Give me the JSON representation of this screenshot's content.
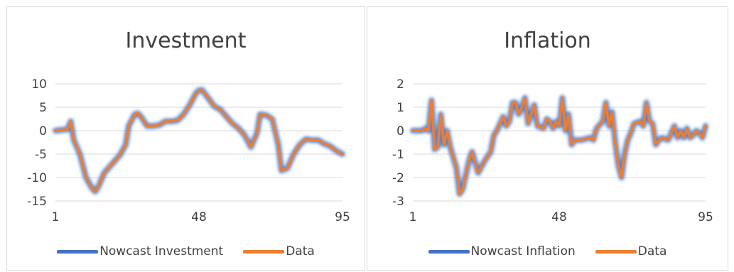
{
  "colors": {
    "nowcast": "#4472c4",
    "data": "#ed7d31",
    "grid": "#d9d9d9",
    "text": "#404040"
  },
  "chart_data": [
    {
      "type": "line",
      "title": "Investment",
      "x_ticks": [
        "1",
        "48",
        "95"
      ],
      "y_ticks": [
        "10",
        "5",
        "0",
        "-5",
        "-10",
        "-15"
      ],
      "ylim": [
        -15,
        10
      ],
      "xlim": [
        1,
        95
      ],
      "grid": true,
      "legend_position": "bottom",
      "series": [
        {
          "name": "Nowcast Investment",
          "x": [
            1,
            5,
            6,
            7,
            9,
            11,
            13,
            14,
            15,
            17,
            19,
            21,
            22,
            24,
            25,
            27,
            28,
            29,
            31,
            33,
            35,
            37,
            39,
            41,
            43,
            45,
            47,
            48,
            49,
            51,
            53,
            55,
            57,
            59,
            61,
            63,
            65,
            67,
            68,
            70,
            72,
            74,
            75,
            77,
            79,
            81,
            83,
            85,
            87,
            89,
            91,
            93,
            95
          ],
          "y": [
            0,
            0.3,
            2,
            -2,
            -5,
            -10,
            -12.3,
            -13,
            -12,
            -9,
            -7.5,
            -6,
            -5.3,
            -3,
            1,
            3.5,
            3.7,
            3,
            1,
            1,
            1.2,
            2,
            2,
            2.2,
            3.5,
            5.5,
            8,
            8.6,
            8.7,
            7,
            5.2,
            4.5,
            3,
            1.5,
            0.5,
            -1,
            -3.5,
            -0.5,
            3.5,
            3.3,
            2.5,
            -3,
            -8.5,
            -8,
            -5,
            -3,
            -1.8,
            -2,
            -2,
            -2.8,
            -3.3,
            -4.3,
            -5
          ]
        },
        {
          "name": "Data",
          "x": [
            1,
            5,
            6,
            7,
            9,
            11,
            13,
            14,
            15,
            17,
            19,
            21,
            22,
            24,
            25,
            27,
            28,
            29,
            31,
            33,
            35,
            37,
            39,
            41,
            43,
            45,
            47,
            48,
            49,
            51,
            53,
            55,
            57,
            59,
            61,
            63,
            65,
            67,
            68,
            70,
            72,
            74,
            75,
            77,
            79,
            81,
            83,
            85,
            87,
            89,
            91,
            93,
            95
          ],
          "y": [
            0,
            0.3,
            2,
            -2,
            -5,
            -10,
            -12.3,
            -13,
            -12,
            -9,
            -7.5,
            -6,
            -5.3,
            -3,
            1,
            3.5,
            3.7,
            3,
            1,
            1,
            1.2,
            2,
            2,
            2.2,
            3.5,
            5.5,
            8,
            8.6,
            8.7,
            7,
            5.2,
            4.5,
            3,
            1.5,
            0.5,
            -1,
            -3.5,
            -0.5,
            3.5,
            3.3,
            2.5,
            -3,
            -8.5,
            -8,
            -5,
            -3,
            -1.8,
            -2,
            -2,
            -2.8,
            -3.3,
            -4.3,
            -5
          ]
        }
      ]
    },
    {
      "type": "line",
      "title": "Inflation",
      "x_ticks": [
        "1",
        "48",
        "95"
      ],
      "y_ticks": [
        "2",
        "1",
        "0",
        "-1",
        "-2",
        "-3"
      ],
      "ylim": [
        -3,
        2
      ],
      "xlim": [
        1,
        95
      ],
      "grid": true,
      "legend_position": "bottom",
      "series": [
        {
          "name": "Nowcast Inflation",
          "x": [
            1,
            4,
            5,
            6,
            7,
            8,
            9,
            10,
            11,
            12,
            13,
            15,
            16,
            17,
            19,
            20,
            22,
            24,
            26,
            27,
            28,
            30,
            31,
            32,
            33,
            34,
            35,
            36,
            37,
            38,
            40,
            41,
            43,
            44,
            45,
            46,
            47,
            48,
            49,
            50,
            51,
            52,
            53,
            55,
            58,
            59,
            60,
            62,
            63,
            64,
            65,
            66,
            67,
            68,
            69,
            70,
            71,
            72,
            74,
            75,
            76,
            77,
            78,
            79,
            80,
            81,
            83,
            85,
            86,
            87,
            88,
            89,
            90,
            91,
            92,
            93,
            94,
            95
          ],
          "y": [
            0,
            0,
            0.1,
            0,
            1.3,
            -0.8,
            -0.7,
            0.7,
            -0.6,
            0,
            -0.7,
            -1.6,
            -2.7,
            -2.5,
            -1.3,
            -0.9,
            -1.8,
            -1.3,
            -0.9,
            -0.2,
            0,
            0.6,
            0.2,
            0.4,
            1.2,
            1.2,
            0.7,
            1,
            1.4,
            0.3,
            1.1,
            0.2,
            0.1,
            0.5,
            0.4,
            0.1,
            0.4,
            0.2,
            1.4,
            0,
            0.7,
            -0.6,
            -0.4,
            -0.4,
            -0.3,
            -0.4,
            0.1,
            0.4,
            1.2,
            0.2,
            0.8,
            -0.5,
            -1.5,
            -2,
            -1,
            -0.4,
            -0.1,
            0.3,
            0.4,
            0.2,
            1.2,
            0.4,
            0.3,
            -0.6,
            -0.4,
            -0.3,
            -0.4,
            0.2,
            -0.3,
            0,
            -0.3,
            0.1,
            -0.3,
            -0.2,
            0,
            -0.1,
            -0.3,
            0.2
          ]
        },
        {
          "name": "Data",
          "x": [
            1,
            4,
            5,
            6,
            7,
            8,
            9,
            10,
            11,
            12,
            13,
            15,
            16,
            17,
            19,
            20,
            22,
            24,
            26,
            27,
            28,
            30,
            31,
            32,
            33,
            34,
            35,
            36,
            37,
            38,
            40,
            41,
            43,
            44,
            45,
            46,
            47,
            48,
            49,
            50,
            51,
            52,
            53,
            55,
            58,
            59,
            60,
            62,
            63,
            64,
            65,
            66,
            67,
            68,
            69,
            70,
            71,
            72,
            74,
            75,
            76,
            77,
            78,
            79,
            80,
            81,
            83,
            85,
            86,
            87,
            88,
            89,
            90,
            91,
            92,
            93,
            94,
            95
          ],
          "y": [
            0,
            0,
            0.1,
            0,
            1.3,
            -0.8,
            -0.7,
            0.7,
            -0.6,
            0,
            -0.7,
            -1.6,
            -2.7,
            -2.5,
            -1.3,
            -0.9,
            -1.8,
            -1.3,
            -0.9,
            -0.2,
            0,
            0.6,
            0.2,
            0.4,
            1.2,
            1.2,
            0.7,
            1,
            1.4,
            0.3,
            1.1,
            0.2,
            0.1,
            0.5,
            0.4,
            0.1,
            0.4,
            0.2,
            1.4,
            0,
            0.7,
            -0.6,
            -0.4,
            -0.4,
            -0.3,
            -0.4,
            0.1,
            0.4,
            1.2,
            0.2,
            0.8,
            -0.5,
            -1.5,
            -2,
            -1,
            -0.4,
            -0.1,
            0.3,
            0.4,
            0.2,
            1.2,
            0.4,
            0.3,
            -0.6,
            -0.4,
            -0.3,
            -0.4,
            0.2,
            -0.3,
            0,
            -0.3,
            0.1,
            -0.3,
            -0.2,
            0,
            -0.1,
            -0.3,
            0.2
          ]
        }
      ]
    }
  ]
}
